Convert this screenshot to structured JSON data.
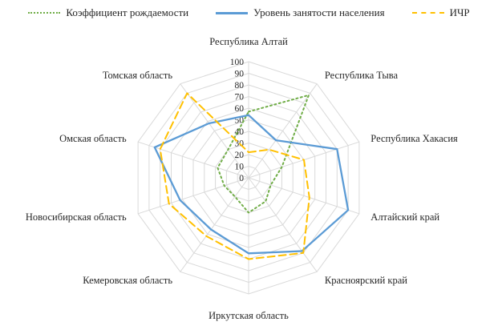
{
  "chart_data": {
    "type": "radar",
    "categories": [
      "Республика Алтай",
      "Республика Тыва",
      "Республика Хакасия",
      "Алтайский край",
      "Красноярский край",
      "Иркутская область",
      "Кемеровская область",
      "Новосибирская область",
      "Омская область",
      "Томская область"
    ],
    "series": [
      {
        "name": "Коэффициент рождаемости",
        "color": "#70AD47",
        "style": "dotted",
        "values": [
          57,
          88,
          30,
          20,
          25,
          30,
          20,
          22,
          28,
          30
        ]
      },
      {
        "name": "Уровень занятости населения",
        "color": "#5B9BD5",
        "style": "solid",
        "values": [
          54,
          40,
          80,
          90,
          78,
          65,
          55,
          62,
          85,
          58
        ]
      },
      {
        "name": "ИЧР",
        "color": "#FFC000",
        "style": "dashed",
        "values": [
          22,
          30,
          50,
          55,
          80,
          70,
          62,
          72,
          80,
          90
        ]
      }
    ],
    "rmin": 0,
    "rmax": 100,
    "rstep": 10,
    "grid": true,
    "grid_color": "#D9D9D9",
    "text_color": "#262626",
    "legend_position": "top",
    "title": "",
    "xlabel": "",
    "ylabel": ""
  }
}
